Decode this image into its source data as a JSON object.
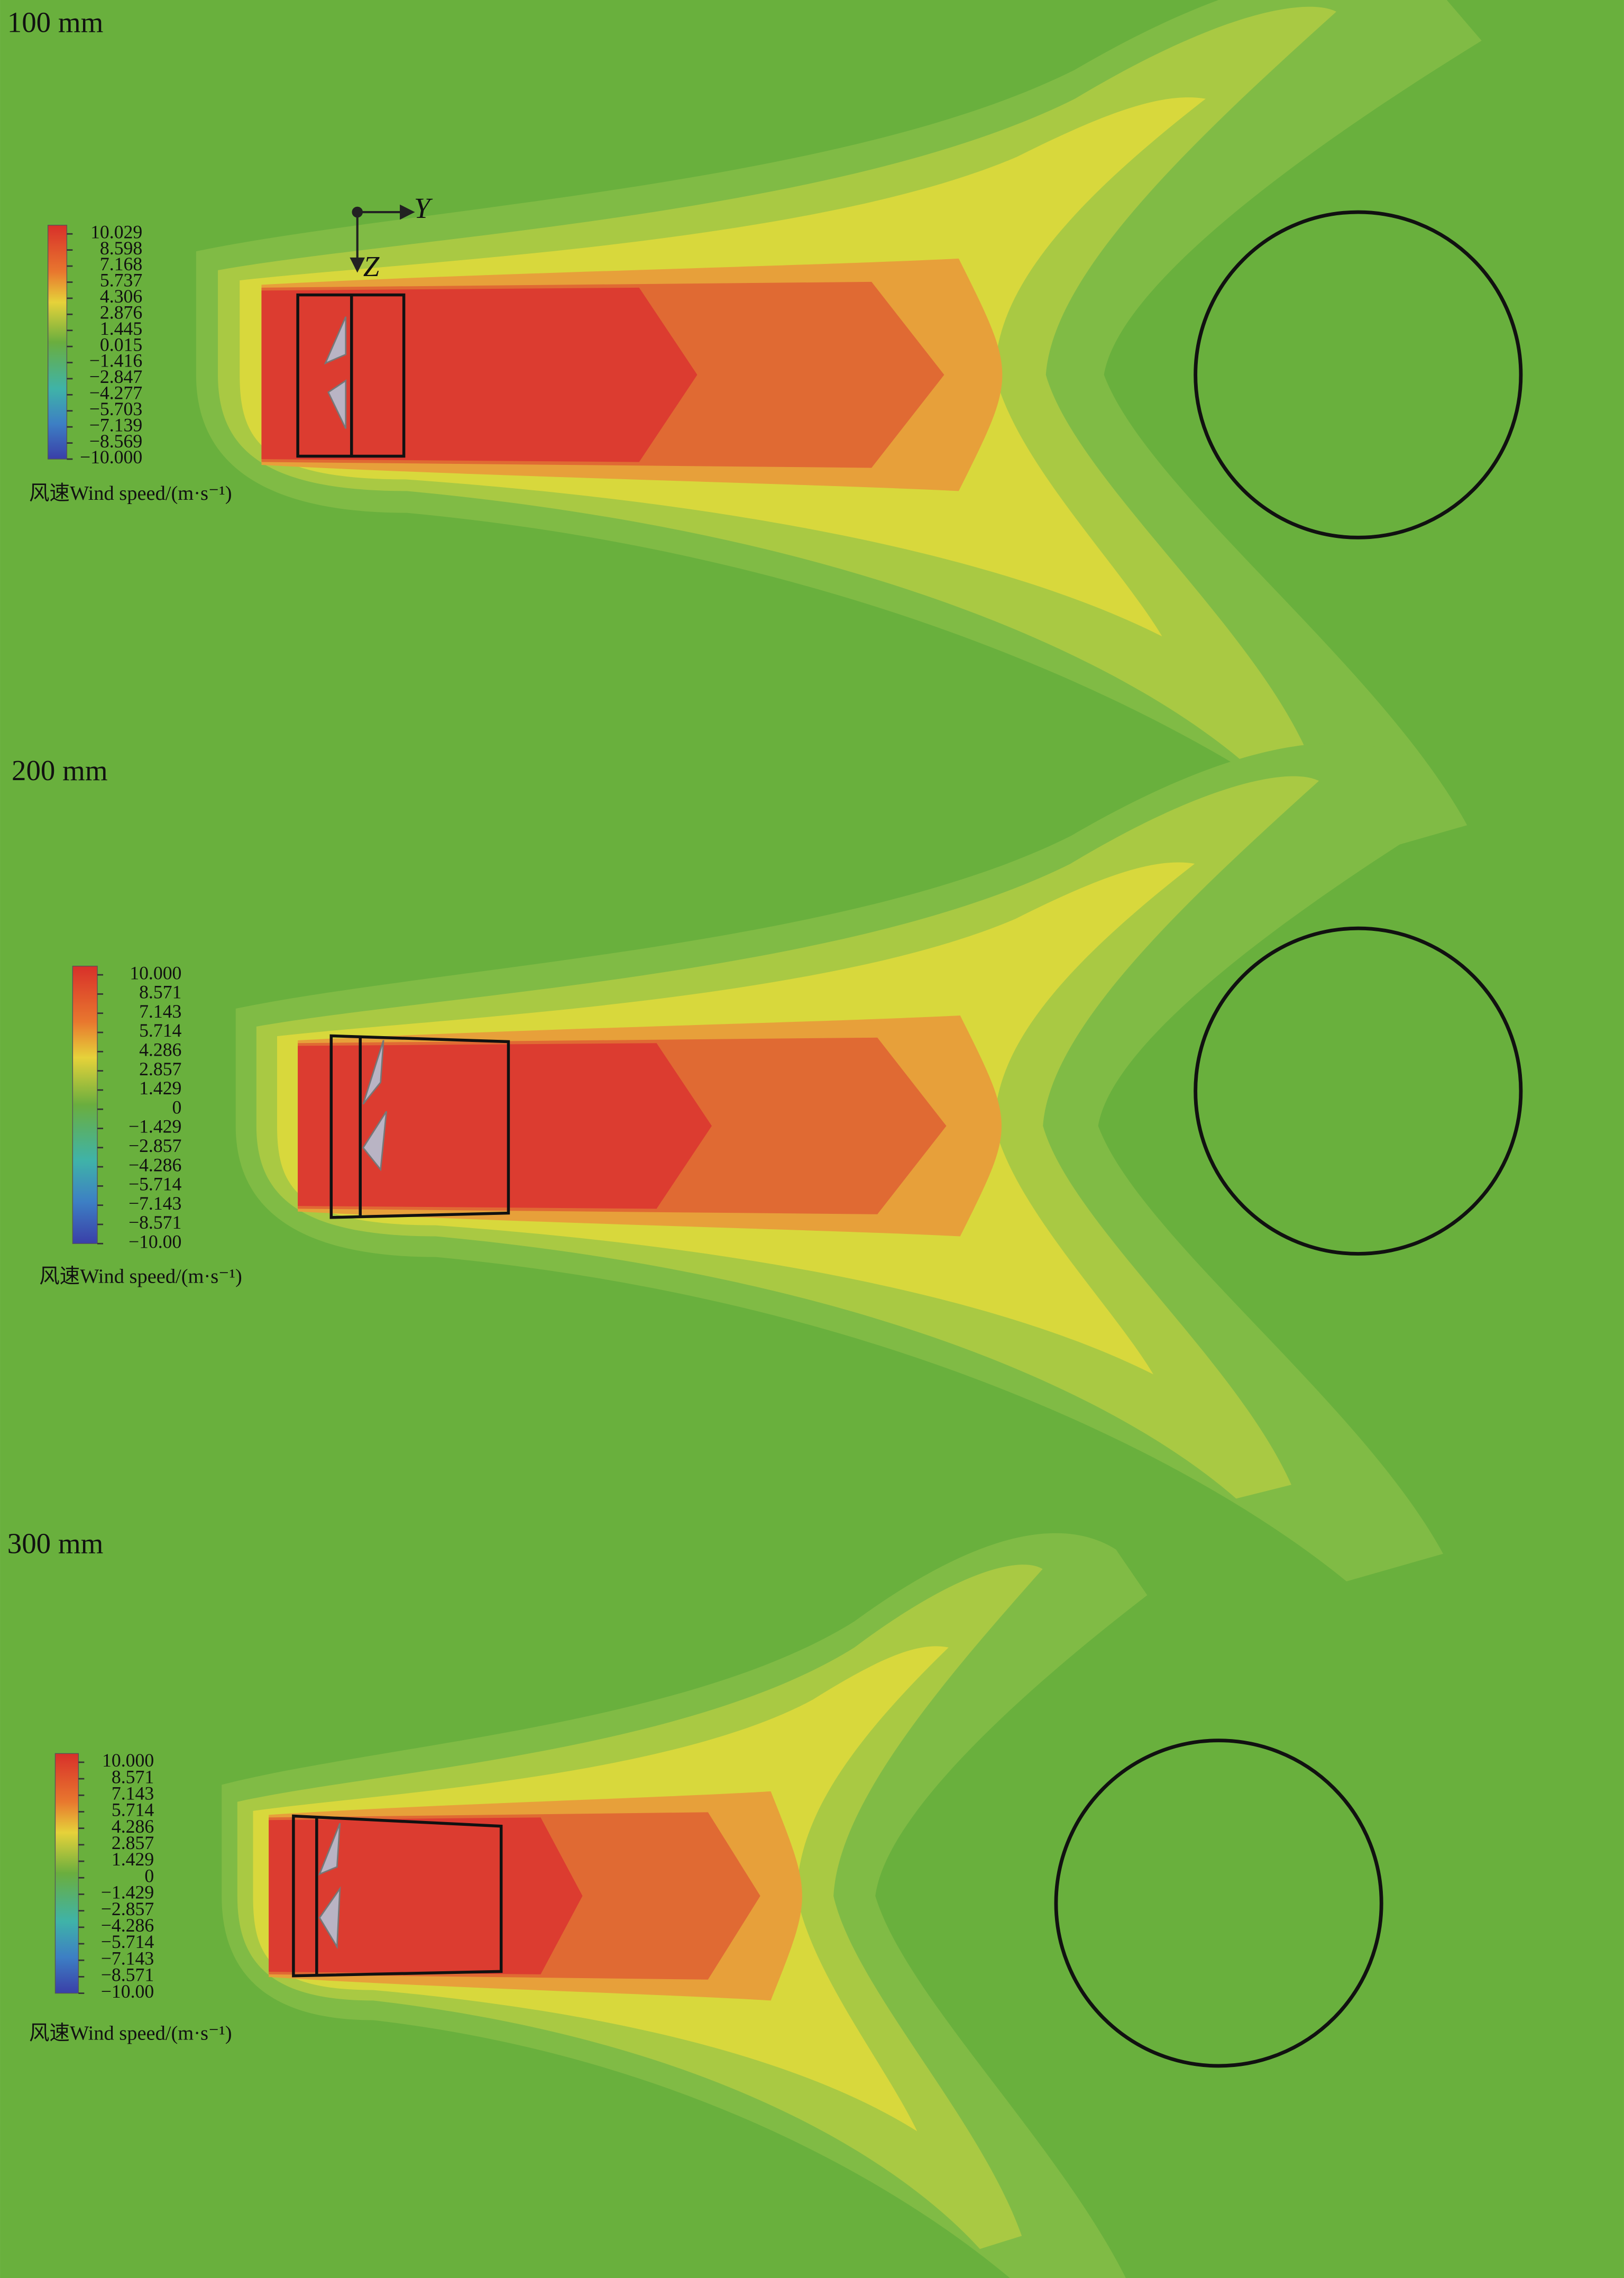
{
  "panels": [
    {
      "label": "100 mm",
      "axes": {
        "horizontal": "Y",
        "vertical": "Z"
      },
      "legend": {
        "ticks": [
          "10.029",
          "8.598",
          "7.168",
          "5.737",
          "4.306",
          "2.876",
          "1.445",
          "0.015",
          "−1.416",
          "−2.847",
          "−4.277",
          "−5.703",
          "−7.139",
          "−8.569",
          "−10.000"
        ],
        "title": "风速Wind speed/(m·s⁻¹)"
      }
    },
    {
      "label": "200 mm",
      "legend": {
        "ticks": [
          "10.000",
          "8.571",
          "7.143",
          "5.714",
          "4.286",
          "2.857",
          "1.429",
          "0",
          "−1.429",
          "−2.857",
          "−4.286",
          "−5.714",
          "−7.143",
          "−8.571",
          "−10.00"
        ],
        "title": "风速Wind speed/(m·s⁻¹)"
      }
    },
    {
      "label": "300 mm",
      "legend": {
        "ticks": [
          "10.000",
          "8.571",
          "7.143",
          "5.714",
          "4.286",
          "2.857",
          "1.429",
          "0",
          "−1.429",
          "−2.857",
          "−4.286",
          "−5.714",
          "−7.143",
          "−8.571",
          "−10.00"
        ],
        "title": "风速Wind speed/(m·s⁻¹)"
      }
    }
  ]
}
